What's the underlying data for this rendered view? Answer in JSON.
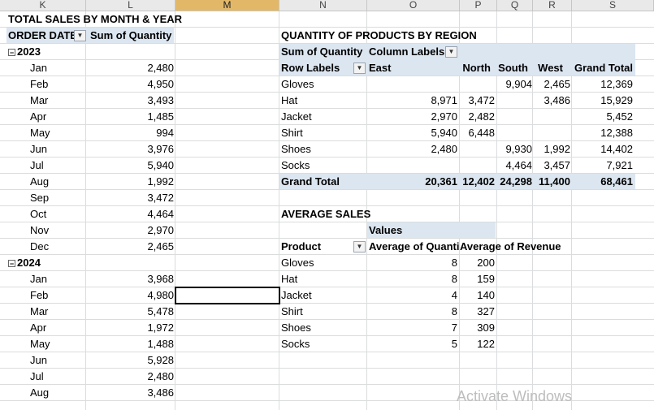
{
  "columns": [
    "K",
    "L",
    "M",
    "N",
    "O",
    "P",
    "Q",
    "R",
    "S"
  ],
  "selected_column": "M",
  "monthly": {
    "title": "TOTAL SALES BY MONTH & YEAR",
    "header_date": "ORDER DATE",
    "header_sum": "Sum of Quantity",
    "year1": "2023",
    "rows1": [
      {
        "m": "Jan",
        "v": "2,480"
      },
      {
        "m": "Feb",
        "v": "4,950"
      },
      {
        "m": "Mar",
        "v": "3,493"
      },
      {
        "m": "Apr",
        "v": "1,485"
      },
      {
        "m": "May",
        "v": "994"
      },
      {
        "m": "Jun",
        "v": "3,976"
      },
      {
        "m": "Jul",
        "v": "5,940"
      },
      {
        "m": "Aug",
        "v": "1,992"
      },
      {
        "m": "Sep",
        "v": "3,472"
      },
      {
        "m": "Oct",
        "v": "4,464"
      },
      {
        "m": "Nov",
        "v": "2,970"
      },
      {
        "m": "Dec",
        "v": "2,465"
      }
    ],
    "year2": "2024",
    "rows2": [
      {
        "m": "Jan",
        "v": "3,968"
      },
      {
        "m": "Feb",
        "v": "4,980"
      },
      {
        "m": "Mar",
        "v": "5,478"
      },
      {
        "m": "Apr",
        "v": "1,972"
      },
      {
        "m": "May",
        "v": "1,488"
      },
      {
        "m": "Jun",
        "v": "5,928"
      },
      {
        "m": "Jul",
        "v": "2,480"
      },
      {
        "m": "Aug",
        "v": "3,486"
      }
    ]
  },
  "region": {
    "title": "QUANTITY OF PRODUCTS BY REGION",
    "sum_label": "Sum of Quantity",
    "col_labels": "Column Labels",
    "row_labels": "Row Labels",
    "headers": [
      "East",
      "North",
      "South",
      "West",
      "Grand Total"
    ],
    "rows": [
      {
        "p": "Gloves",
        "east": "",
        "north": "",
        "south": "9,904",
        "west": "2,465",
        "total": "12,369"
      },
      {
        "p": "Hat",
        "east": "8,971",
        "north": "3,472",
        "south": "",
        "west": "3,486",
        "total": "15,929"
      },
      {
        "p": "Jacket",
        "east": "2,970",
        "north": "2,482",
        "south": "",
        "west": "",
        "total": "5,452"
      },
      {
        "p": "Shirt",
        "east": "5,940",
        "north": "6,448",
        "south": "",
        "west": "",
        "total": "12,388"
      },
      {
        "p": "Shoes",
        "east": "2,480",
        "north": "",
        "south": "9,930",
        "west": "1,992",
        "total": "14,402"
      },
      {
        "p": "Socks",
        "east": "",
        "north": "",
        "south": "4,464",
        "west": "3,457",
        "total": "7,921"
      }
    ],
    "grand": {
      "label": "Grand Total",
      "east": "20,361",
      "north": "12,402",
      "south": "24,298",
      "west": "11,400",
      "total": "68,461"
    }
  },
  "average": {
    "title": "AVERAGE SALES",
    "values_label": "Values",
    "product_label": "Product",
    "avg_qty": "Average of Quanti",
    "avg_rev": "Average of Revenue",
    "rows": [
      {
        "p": "Gloves",
        "q": "8",
        "r": "200"
      },
      {
        "p": "Hat",
        "q": "8",
        "r": "159"
      },
      {
        "p": "Jacket",
        "q": "4",
        "r": "140"
      },
      {
        "p": "Shirt",
        "q": "8",
        "r": "327"
      },
      {
        "p": "Shoes",
        "q": "7",
        "r": "309"
      },
      {
        "p": "Socks",
        "q": "5",
        "r": "122"
      }
    ]
  },
  "watermark": "Activate Windows"
}
